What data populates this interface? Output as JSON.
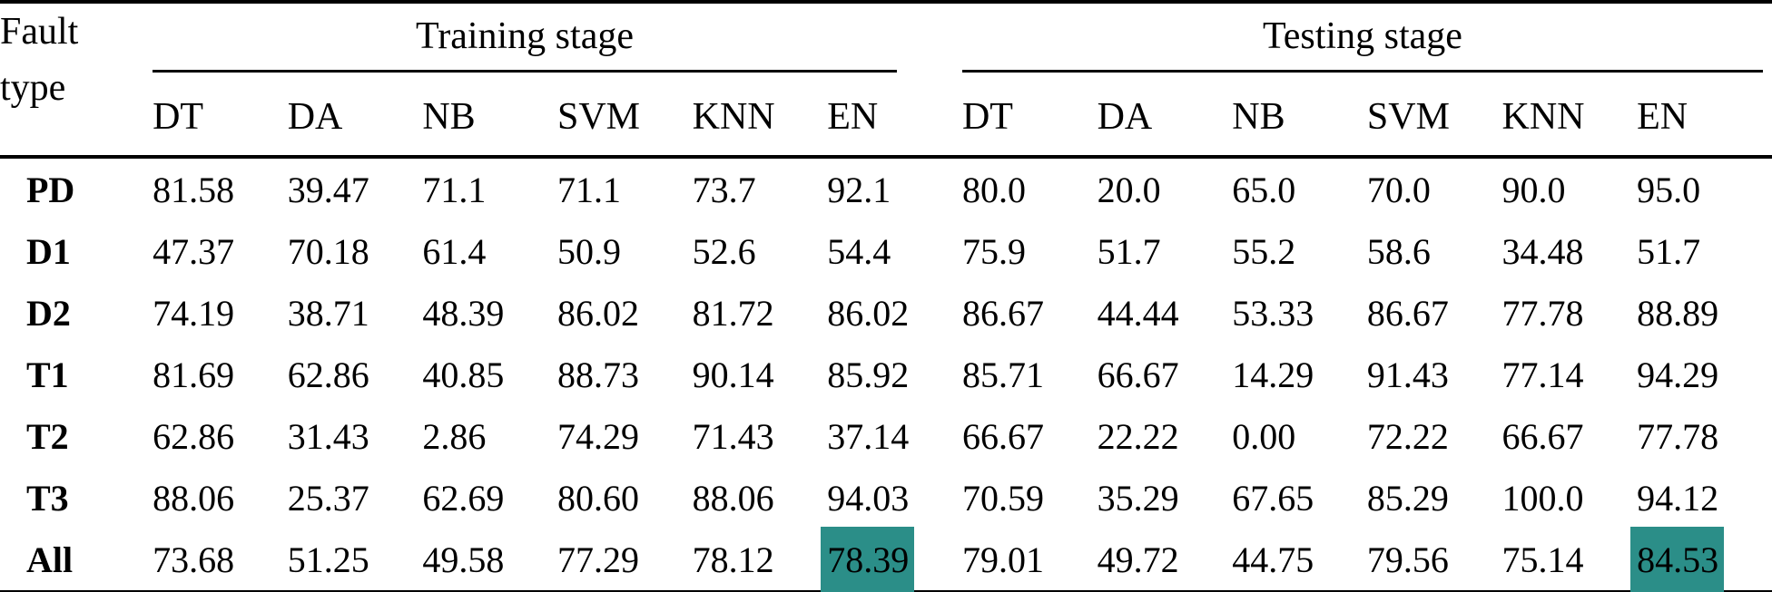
{
  "page": {
    "background": "#ffffff",
    "text_color": "#000000",
    "highlight_color": "#2b8e88"
  },
  "table": {
    "corner_header": {
      "line1": "Fault",
      "line2": "type"
    },
    "group_headers": [
      "Training stage",
      "Testing stage"
    ],
    "sub_headers": [
      "DT",
      "DA",
      "NB",
      "SVM",
      "KNN",
      "EN"
    ],
    "rows": [
      {
        "label": "PD",
        "training": [
          "81.58",
          "39.47",
          "71.1",
          "71.1",
          "73.7",
          "92.1"
        ],
        "testing": [
          "80.0",
          "20.0",
          "65.0",
          "70.0",
          "90.0",
          "95.0"
        ],
        "highlights": {
          "training": [],
          "testing": []
        }
      },
      {
        "label": "D1",
        "training": [
          "47.37",
          "70.18",
          "61.4",
          "50.9",
          "52.6",
          "54.4"
        ],
        "testing": [
          "75.9",
          "51.7",
          "55.2",
          "58.6",
          "34.48",
          "51.7"
        ],
        "highlights": {
          "training": [],
          "testing": []
        }
      },
      {
        "label": "D2",
        "training": [
          "74.19",
          "38.71",
          "48.39",
          "86.02",
          "81.72",
          "86.02"
        ],
        "testing": [
          "86.67",
          "44.44",
          "53.33",
          "86.67",
          "77.78",
          "88.89"
        ],
        "highlights": {
          "training": [],
          "testing": []
        }
      },
      {
        "label": "T1",
        "training": [
          "81.69",
          "62.86",
          "40.85",
          "88.73",
          "90.14",
          "85.92"
        ],
        "testing": [
          "85.71",
          "66.67",
          "14.29",
          "91.43",
          "77.14",
          "94.29"
        ],
        "highlights": {
          "training": [],
          "testing": []
        }
      },
      {
        "label": "T2",
        "training": [
          "62.86",
          "31.43",
          "2.86",
          "74.29",
          "71.43",
          "37.14"
        ],
        "testing": [
          "66.67",
          "22.22",
          "0.00",
          "72.22",
          "66.67",
          "77.78"
        ],
        "highlights": {
          "training": [],
          "testing": []
        }
      },
      {
        "label": "T3",
        "training": [
          "88.06",
          "25.37",
          "62.69",
          "80.60",
          "88.06",
          "94.03"
        ],
        "testing": [
          "70.59",
          "35.29",
          "67.65",
          "85.29",
          "100.0",
          "94.12"
        ],
        "highlights": {
          "training": [],
          "testing": []
        }
      },
      {
        "label": "All",
        "training": [
          "73.68",
          "51.25",
          "49.58",
          "77.29",
          "78.12",
          "78.39"
        ],
        "testing": [
          "79.01",
          "49.72",
          "44.75",
          "79.56",
          "75.14",
          "84.53"
        ],
        "highlights": {
          "training": [
            5
          ],
          "testing": [
            5
          ]
        }
      }
    ]
  },
  "chart_data": {
    "type": "table",
    "row_header": "Fault type",
    "column_groups": [
      "Training stage",
      "Testing stage"
    ],
    "columns": [
      "DT",
      "DA",
      "NB",
      "SVM",
      "KNN",
      "EN"
    ],
    "rows": [
      {
        "label": "PD",
        "training": [
          81.58,
          39.47,
          71.1,
          71.1,
          73.7,
          92.1
        ],
        "testing": [
          80.0,
          20.0,
          65.0,
          70.0,
          90.0,
          95.0
        ]
      },
      {
        "label": "D1",
        "training": [
          47.37,
          70.18,
          61.4,
          50.9,
          52.6,
          54.4
        ],
        "testing": [
          75.9,
          51.7,
          55.2,
          58.6,
          34.48,
          51.7
        ]
      },
      {
        "label": "D2",
        "training": [
          74.19,
          38.71,
          48.39,
          86.02,
          81.72,
          86.02
        ],
        "testing": [
          86.67,
          44.44,
          53.33,
          86.67,
          77.78,
          88.89
        ]
      },
      {
        "label": "T1",
        "training": [
          81.69,
          62.86,
          40.85,
          88.73,
          90.14,
          85.92
        ],
        "testing": [
          85.71,
          66.67,
          14.29,
          91.43,
          77.14,
          94.29
        ]
      },
      {
        "label": "T2",
        "training": [
          62.86,
          31.43,
          2.86,
          74.29,
          71.43,
          37.14
        ],
        "testing": [
          66.67,
          22.22,
          0.0,
          72.22,
          66.67,
          77.78
        ]
      },
      {
        "label": "T3",
        "training": [
          88.06,
          25.37,
          62.69,
          80.6,
          88.06,
          94.03
        ],
        "testing": [
          70.59,
          35.29,
          67.65,
          85.29,
          100.0,
          94.12
        ]
      },
      {
        "label": "All",
        "training": [
          73.68,
          51.25,
          49.58,
          77.29,
          78.12,
          78.39
        ],
        "testing": [
          79.01,
          49.72,
          44.75,
          79.56,
          75.14,
          84.53
        ]
      }
    ],
    "highlighted_cells": [
      {
        "row": "All",
        "stage": "Training stage",
        "column": "EN",
        "value": 78.39
      },
      {
        "row": "All",
        "stage": "Testing stage",
        "column": "EN",
        "value": 84.53
      }
    ]
  }
}
